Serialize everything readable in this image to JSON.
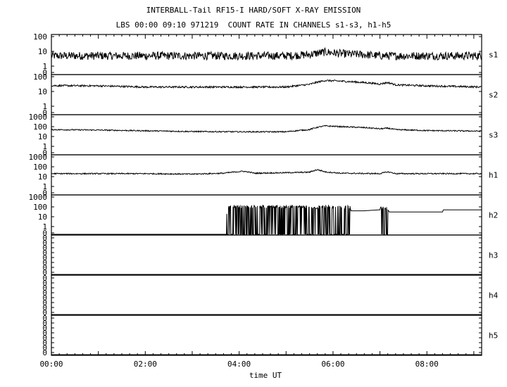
{
  "title": "INTERBALL-Tail RF15-I HARD/SOFT X-RAY EMISSION",
  "subtitle": "LBS 00:00 09:10 971219  COUNT RATE IN CHANNELS s1-s3, h1-h5",
  "chart_data": {
    "type": "line",
    "xlabel": "time UT",
    "xlim": [
      "00:00",
      "09:10"
    ],
    "x_ticks": [
      "00:00",
      "02:00",
      "04:00",
      "06:00",
      "08:00"
    ],
    "y_scale": "log",
    "grid": false,
    "panels": [
      {
        "name": "s1",
        "ytick_labels": [
          "100",
          "10",
          "1",
          "0"
        ],
        "series": [
          {
            "name": "s1",
            "x": [
              "00:00",
              "01:00",
              "02:00",
              "03:00",
              "04:00",
              "05:00",
              "05:30",
              "05:50",
              "06:10",
              "06:40",
              "07:00",
              "08:00",
              "09:10"
            ],
            "y": [
              5,
              5,
              5,
              5,
              5,
              5,
              6,
              9,
              7,
              6,
              5,
              5,
              5
            ]
          }
        ]
      },
      {
        "name": "s2",
        "ytick_labels": [
          "100",
          "10",
          "1",
          "0"
        ],
        "series": [
          {
            "name": "s2",
            "x": [
              "00:00",
              "01:00",
              "02:00",
              "03:00",
              "04:00",
              "05:00",
              "05:30",
              "05:50",
              "06:10",
              "06:40",
              "07:00",
              "07:10",
              "07:20",
              "08:00",
              "09:10"
            ],
            "y": [
              25,
              24,
              20,
              20,
              20,
              20,
              30,
              55,
              50,
              40,
              32,
              40,
              28,
              24,
              20
            ]
          }
        ]
      },
      {
        "name": "s3",
        "ytick_labels": [
          "1000",
          "100",
          "10",
          "1",
          "0"
        ],
        "series": [
          {
            "name": "s3",
            "x": [
              "00:00",
              "01:00",
              "02:00",
              "03:00",
              "04:00",
              "05:00",
              "05:30",
              "05:50",
              "06:10",
              "06:40",
              "07:00",
              "07:10",
              "07:20",
              "08:00",
              "09:10"
            ],
            "y": [
              50,
              45,
              38,
              32,
              30,
              30,
              50,
              120,
              100,
              80,
              60,
              70,
              50,
              40,
              35
            ]
          }
        ]
      },
      {
        "name": "h1",
        "ytick_labels": [
          "1000",
          "100",
          "10",
          "1",
          "0"
        ],
        "series": [
          {
            "name": "h1",
            "x": [
              "00:00",
              "01:00",
              "02:00",
              "03:00",
              "03:40",
              "04:05",
              "04:20",
              "05:00",
              "05:30",
              "05:40",
              "05:50",
              "06:10",
              "07:00",
              "07:10",
              "07:20",
              "08:00",
              "09:10"
            ],
            "y": [
              20,
              20,
              20,
              18,
              22,
              35,
              22,
              25,
              28,
              50,
              30,
              22,
              20,
              30,
              20,
              20,
              20
            ]
          }
        ]
      },
      {
        "name": "h2",
        "ytick_labels": [
          "1000",
          "100",
          "10",
          "1",
          "0"
        ],
        "series": [
          {
            "name": "h2",
            "x": [
              "00:00",
              "03:44",
              "03:45",
              "06:22",
              "06:23",
              "06:40",
              "07:00",
              "07:02",
              "07:10",
              "07:12",
              "08:20",
              "08:21",
              "09:10"
            ],
            "y": [
              0,
              0,
              70,
              70,
              40,
              40,
              50,
              60,
              50,
              30,
              30,
              50,
              50
            ]
          }
        ]
      },
      {
        "name": "h3",
        "ytick_labels": [
          "0",
          "0",
          "0",
          "0",
          "0",
          "0",
          "0",
          "0"
        ],
        "series": [
          {
            "name": "h3",
            "x": [
              "00:00",
              "09:10"
            ],
            "y": [
              0,
              0
            ]
          }
        ]
      },
      {
        "name": "h4",
        "ytick_labels": [
          "0",
          "0",
          "0",
          "0",
          "0",
          "0",
          "0",
          "0"
        ],
        "series": [
          {
            "name": "h4",
            "x": [
              "00:00",
              "09:10"
            ],
            "y": [
              0,
              0
            ]
          }
        ]
      },
      {
        "name": "h5",
        "ytick_labels": [
          "0",
          "0",
          "0",
          "0",
          "0",
          "0",
          "0",
          "0"
        ],
        "series": [
          {
            "name": "h5",
            "x": [
              "00:00",
              "09:10"
            ],
            "y": [
              0,
              0
            ]
          }
        ]
      }
    ]
  }
}
